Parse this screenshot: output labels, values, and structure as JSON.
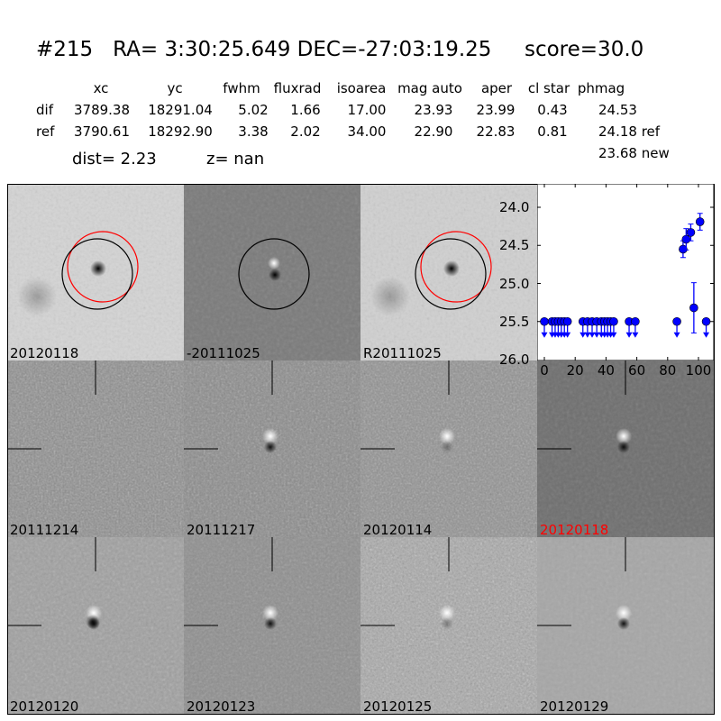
{
  "title": {
    "id": "#215",
    "ra": "RA= 3:30:25.649",
    "dec": "DEC=-27:03:19.25",
    "score": "score=30.0"
  },
  "table": {
    "headers": [
      "xc",
      "yc",
      "fwhm",
      "fluxrad",
      "isoarea",
      "mag auto",
      "aper",
      "cl star",
      "phmag"
    ],
    "rows": [
      {
        "label": "dif",
        "values": [
          "3789.38",
          "18291.04",
          "5.02",
          "1.66",
          "17.00",
          "23.93",
          "23.99",
          "0.43",
          "24.53"
        ]
      },
      {
        "label": "ref",
        "values": [
          "3790.61",
          "18292.90",
          "3.38",
          "2.02",
          "34.00",
          "22.90",
          "22.83",
          "0.81",
          "24.18 ref"
        ]
      }
    ],
    "phmag_new": "23.68 new",
    "dist": "dist=  2.23",
    "z": "z=   nan"
  },
  "stamps": [
    {
      "label": "20120118",
      "color": "#000000"
    },
    {
      "label": "-20111025",
      "color": "#000000"
    },
    {
      "label": "R20111025",
      "color": "#000000"
    },
    {
      "label": "20111214",
      "color": "#000000"
    },
    {
      "label": "20111217",
      "color": "#000000"
    },
    {
      "label": "20120114",
      "color": "#000000"
    },
    {
      "label": "20120118",
      "color": "#ff0000"
    },
    {
      "label": "20120120",
      "color": "#000000"
    },
    {
      "label": "20120123",
      "color": "#000000"
    },
    {
      "label": "20120125",
      "color": "#000000"
    },
    {
      "label": "20120129",
      "color": "#000000"
    }
  ],
  "chart_data": {
    "type": "scatter",
    "xlim": [
      -5,
      107
    ],
    "ylim": [
      26.0,
      23.7
    ],
    "y_inverted": true,
    "xticks": [
      "0",
      "20",
      "40",
      "60",
      "80",
      "100"
    ],
    "yticks": [
      "24.0",
      "24.5",
      "25.0",
      "25.5",
      "26.0"
    ],
    "color": "#0000ff",
    "upper_limits": {
      "x": [
        0,
        5,
        7,
        9,
        11,
        13,
        15,
        25,
        28,
        31,
        34,
        37,
        39,
        41,
        43,
        45,
        55,
        59,
        86,
        105
      ],
      "y": 25.5
    },
    "detections": [
      {
        "x": 90,
        "y": 24.55,
        "err": 0.11
      },
      {
        "x": 92,
        "y": 24.42,
        "err": 0.14
      },
      {
        "x": 95,
        "y": 24.33,
        "err": 0.11
      },
      {
        "x": 97,
        "y": 25.32,
        "err": 0.33
      },
      {
        "x": 101,
        "y": 24.19,
        "err": 0.11
      }
    ]
  }
}
